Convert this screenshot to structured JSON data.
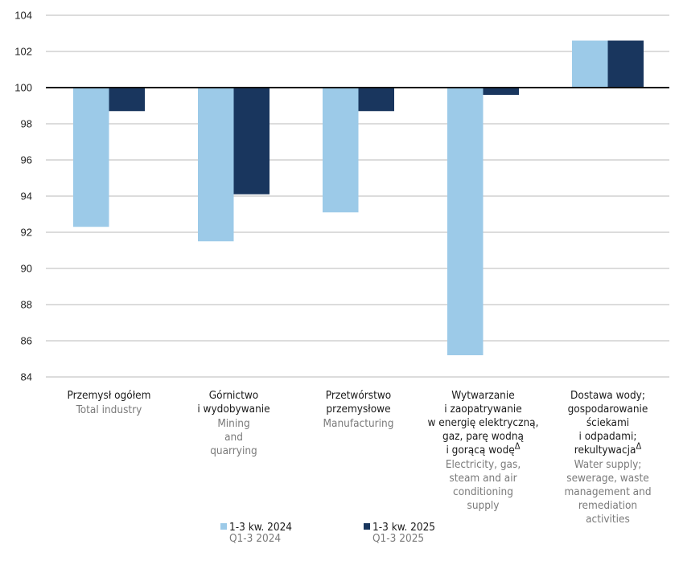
{
  "chart_data": {
    "type": "bar",
    "title": "",
    "xlabel": "",
    "ylabel": "",
    "ylim": [
      84,
      104
    ],
    "yticks": [
      84,
      86,
      88,
      90,
      92,
      94,
      96,
      98,
      100,
      102,
      104
    ],
    "ytick_labels": [
      "84",
      "86",
      "88",
      "90",
      "92",
      "94",
      "96",
      "98",
      "100",
      "102",
      "104"
    ],
    "baseline": 100,
    "grid": true,
    "legend_position": "bottom",
    "categories": [
      {
        "pl": [
          "Przemysł ogółem"
        ],
        "en": [
          "Total industry"
        ],
        "delta": false
      },
      {
        "pl": [
          "Górnictwo",
          "i wydobywanie"
        ],
        "en": [
          "Mining",
          "and",
          "quarrying"
        ],
        "delta": false
      },
      {
        "pl": [
          "Przetwórstwo",
          "przemysłowe"
        ],
        "en": [
          "Manufacturing"
        ],
        "delta": false
      },
      {
        "pl": [
          "Wytwarzanie",
          "i zaopatrywanie",
          "w energię elektryczną,",
          "gaz, parę wodną",
          "i gorącą wodę"
        ],
        "en": [
          "Electricity, gas,",
          "steam and air",
          "conditioning",
          "supply"
        ],
        "delta": true
      },
      {
        "pl": [
          "Dostawa wody;",
          "gospodarowanie",
          "ściekami",
          "i odpadami;",
          "rekultywacja"
        ],
        "en": [
          "Water supply;",
          "sewerage, waste",
          "management and",
          "remediation",
          "activities"
        ],
        "delta": true
      }
    ],
    "delta_symbol": "Δ",
    "series": [
      {
        "name": "1-3 kw. 2024",
        "name_en": "Q1-3 2024",
        "color": "#9ccae8",
        "values": [
          92.3,
          91.5,
          93.1,
          85.2,
          102.6
        ]
      },
      {
        "name": "1-3 kw. 2025",
        "name_en": "Q1-3 2025",
        "color": "#19365e",
        "values": [
          98.7,
          94.1,
          98.7,
          99.6,
          102.6
        ]
      }
    ]
  }
}
